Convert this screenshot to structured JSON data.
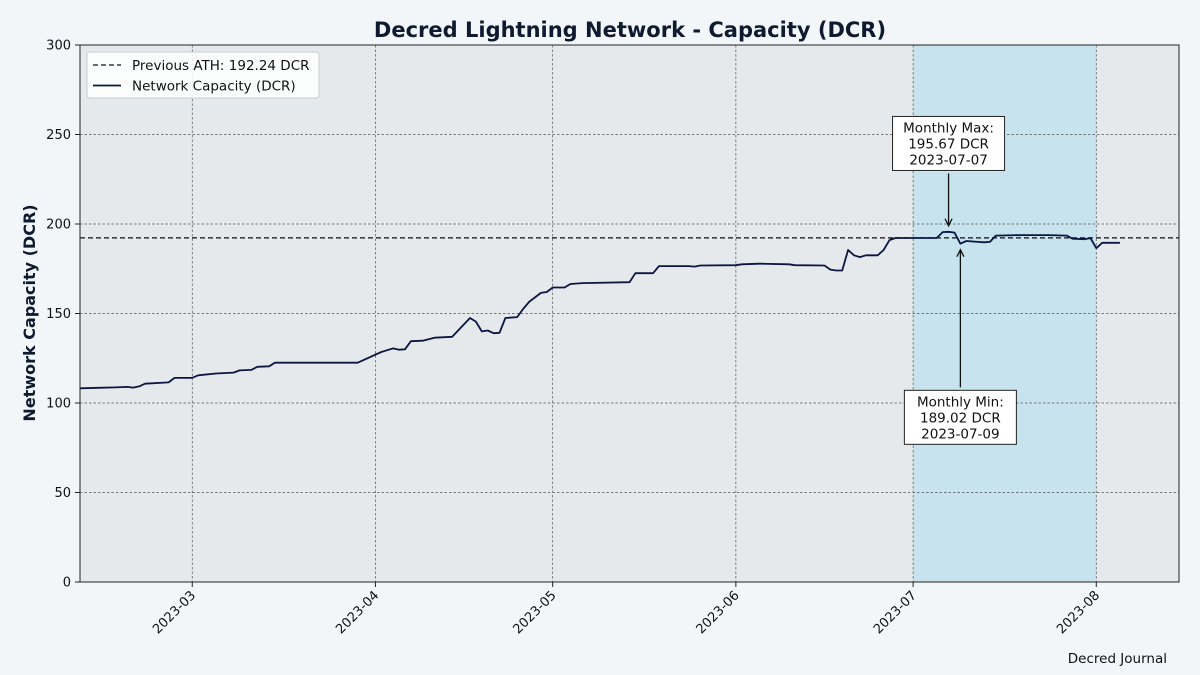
{
  "chart_data": {
    "type": "line",
    "title": "Decred Lightning Network - Capacity (DCR)",
    "xlabel": "",
    "ylabel": "Network Capacity (DCR)",
    "xlim": [
      "2023-02-10",
      "2023-08-15"
    ],
    "ylim": [
      0,
      300
    ],
    "x_ticks": [
      "2023-03",
      "2023-04",
      "2023-05",
      "2023-06",
      "2023-07",
      "2023-08"
    ],
    "y_ticks": [
      0,
      50,
      100,
      150,
      200,
      250,
      300
    ],
    "grid": true,
    "legend_position": "top-left",
    "legend": [
      {
        "label": "Previous ATH: 192.24 DCR",
        "style": "dashed"
      },
      {
        "label": "Network Capacity (DCR)",
        "style": "solid"
      }
    ],
    "reference_line": {
      "label": "Previous ATH: 192.24 DCR",
      "y": 192.24
    },
    "highlight_range": {
      "start": "2023-07-01",
      "end": "2023-08-01"
    },
    "annotations": [
      {
        "id": "max",
        "lines": [
          "Monthly Max:",
          "195.67 DCR",
          "2023-07-07"
        ],
        "x": "2023-07-07",
        "y": 195.67,
        "label_y": 245
      },
      {
        "id": "min",
        "lines": [
          "Monthly Min:",
          "189.02 DCR",
          "2023-07-09"
        ],
        "x": "2023-07-09",
        "y": 189.02,
        "label_y": 92
      }
    ],
    "footer": "Decred Journal",
    "colors": {
      "line": "#0b1642",
      "plot_bg": "#e5e9ec",
      "highlight": "#c6e3ee",
      "page_bg": "#f2f6f8",
      "grid": "#555555"
    },
    "series": [
      {
        "name": "Network Capacity (DCR)",
        "points": [
          [
            "2023-02-10",
            108.2
          ],
          [
            "2023-02-13",
            108.5
          ],
          [
            "2023-02-16",
            108.7
          ],
          [
            "2023-02-18",
            109.0
          ],
          [
            "2023-02-19",
            108.6
          ],
          [
            "2023-02-20",
            109.3
          ],
          [
            "2023-02-21",
            110.8
          ],
          [
            "2023-02-25",
            111.5
          ],
          [
            "2023-02-26",
            114.0
          ],
          [
            "2023-03-01",
            114.1
          ],
          [
            "2023-03-02",
            115.5
          ],
          [
            "2023-03-05",
            116.5
          ],
          [
            "2023-03-08",
            117.0
          ],
          [
            "2023-03-09",
            118.2
          ],
          [
            "2023-03-11",
            118.5
          ],
          [
            "2023-03-12",
            120.2
          ],
          [
            "2023-03-14",
            120.5
          ],
          [
            "2023-03-15",
            122.5
          ],
          [
            "2023-03-29",
            122.5
          ],
          [
            "2023-04-02",
            128.5
          ],
          [
            "2023-04-03",
            129.5
          ],
          [
            "2023-04-04",
            130.5
          ],
          [
            "2023-04-05",
            129.8
          ],
          [
            "2023-04-06",
            130.0
          ],
          [
            "2023-04-07",
            134.5
          ],
          [
            "2023-04-09",
            134.8
          ],
          [
            "2023-04-11",
            136.5
          ],
          [
            "2023-04-14",
            137.0
          ],
          [
            "2023-04-17",
            147.5
          ],
          [
            "2023-04-18",
            145.5
          ],
          [
            "2023-04-19",
            140.0
          ],
          [
            "2023-04-20",
            140.5
          ],
          [
            "2023-04-21",
            139.0
          ],
          [
            "2023-04-22",
            139.2
          ],
          [
            "2023-04-23",
            147.5
          ],
          [
            "2023-04-25",
            148.0
          ],
          [
            "2023-04-26",
            152.5
          ],
          [
            "2023-04-27",
            156.5
          ],
          [
            "2023-04-29",
            161.5
          ],
          [
            "2023-04-30",
            162.0
          ],
          [
            "2023-05-01",
            164.5
          ],
          [
            "2023-05-03",
            164.5
          ],
          [
            "2023-05-04",
            166.5
          ],
          [
            "2023-05-06",
            167.0
          ],
          [
            "2023-05-14",
            167.5
          ],
          [
            "2023-05-15",
            172.5
          ],
          [
            "2023-05-18",
            172.5
          ],
          [
            "2023-05-19",
            176.5
          ],
          [
            "2023-05-24",
            176.5
          ],
          [
            "2023-05-25",
            176.2
          ],
          [
            "2023-05-26",
            176.8
          ],
          [
            "2023-06-01",
            177.0
          ],
          [
            "2023-06-02",
            177.5
          ],
          [
            "2023-06-05",
            177.8
          ],
          [
            "2023-06-10",
            177.5
          ],
          [
            "2023-06-11",
            177.0
          ],
          [
            "2023-06-16",
            176.8
          ],
          [
            "2023-06-17",
            174.5
          ],
          [
            "2023-06-18",
            174.0
          ],
          [
            "2023-06-19",
            174.0
          ],
          [
            "2023-06-20",
            185.5
          ],
          [
            "2023-06-21",
            182.5
          ],
          [
            "2023-06-22",
            181.5
          ],
          [
            "2023-06-23",
            182.5
          ],
          [
            "2023-06-25",
            182.5
          ],
          [
            "2023-06-26",
            185.5
          ],
          [
            "2023-06-27",
            191.0
          ],
          [
            "2023-06-28",
            192.2
          ],
          [
            "2023-07-05",
            192.2
          ],
          [
            "2023-07-06",
            195.5
          ],
          [
            "2023-07-07",
            195.67
          ],
          [
            "2023-07-08",
            195.2
          ],
          [
            "2023-07-09",
            189.02
          ],
          [
            "2023-07-10",
            190.5
          ],
          [
            "2023-07-12",
            190.0
          ],
          [
            "2023-07-13",
            189.8
          ],
          [
            "2023-07-14",
            190.0
          ],
          [
            "2023-07-15",
            193.5
          ],
          [
            "2023-07-19",
            193.8
          ],
          [
            "2023-07-24",
            193.8
          ],
          [
            "2023-07-27",
            193.5
          ],
          [
            "2023-07-28",
            191.8
          ],
          [
            "2023-07-30",
            191.5
          ],
          [
            "2023-07-31",
            192.2
          ],
          [
            "2023-08-01",
            186.5
          ],
          [
            "2023-08-02",
            189.5
          ],
          [
            "2023-08-05",
            189.5
          ]
        ]
      }
    ]
  }
}
